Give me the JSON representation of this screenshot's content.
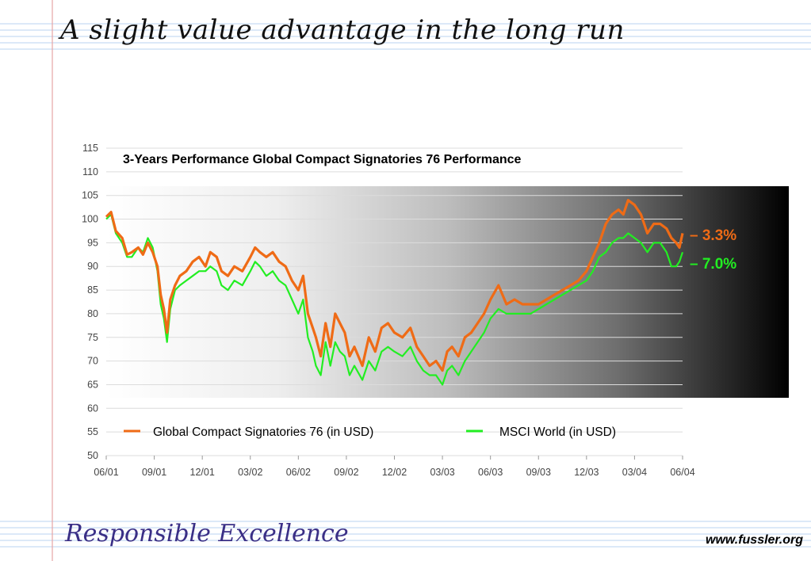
{
  "slide": {
    "title": "A slight value advantage in the long run",
    "footer_title": "Responsible Excellence",
    "footer_url": "www.fussler.org"
  },
  "colors": {
    "series_orange": "#ef6b16",
    "series_green": "#22ee22",
    "ruling_blue": "#b9d3f1",
    "margin_red": "#e6a5a5",
    "footer_title": "#3a2f86"
  },
  "chart_data": {
    "type": "line",
    "title": "3-Years Performance Global Compact Signatories 76 Performance",
    "xlabel": "",
    "ylabel": "",
    "ylim": [
      50,
      115
    ],
    "yticks": [
      50,
      55,
      60,
      65,
      70,
      75,
      80,
      85,
      90,
      95,
      100,
      105,
      110,
      115
    ],
    "xlim": [
      0,
      36
    ],
    "xtick_positions": [
      0,
      3,
      6,
      9,
      12,
      15,
      18,
      21,
      24,
      27,
      30,
      33,
      36
    ],
    "xtick_labels": [
      "06/01",
      "09/01",
      "12/01",
      "03/02",
      "06/02",
      "09/02",
      "12/02",
      "03/03",
      "06/03",
      "09/03",
      "12/03",
      "03/04",
      "06/04"
    ],
    "grid": "horizontal",
    "legend_position": "bottom",
    "series": [
      {
        "name": "Global Compact Signatories 76 (in USD)",
        "color": "#ef6b16",
        "x": [
          0,
          0.3,
          0.6,
          1,
          1.3,
          1.6,
          2,
          2.3,
          2.6,
          2.9,
          3.2,
          3.4,
          3.6,
          3.8,
          4,
          4.3,
          4.6,
          5,
          5.4,
          5.8,
          6.2,
          6.5,
          6.9,
          7.2,
          7.6,
          8,
          8.5,
          9,
          9.3,
          9.6,
          10,
          10.4,
          10.8,
          11.2,
          11.6,
          12,
          12.3,
          12.6,
          12.9,
          13.1,
          13.4,
          13.7,
          14,
          14.3,
          14.6,
          14.9,
          15.2,
          15.5,
          16,
          16.4,
          16.8,
          17.2,
          17.6,
          18,
          18.5,
          19,
          19.4,
          19.8,
          20.2,
          20.6,
          21,
          21.3,
          21.6,
          22,
          22.4,
          22.8,
          23.2,
          23.6,
          24,
          24.5,
          25,
          25.5,
          26,
          26.5,
          27,
          27.5,
          28,
          28.5,
          29,
          29.5,
          30,
          30.4,
          30.8,
          31.2,
          31.6,
          32,
          32.3,
          32.6,
          33,
          33.4,
          33.8,
          34.2,
          34.6,
          35,
          35.3,
          35.6,
          35.8,
          36
        ],
        "values": [
          100.5,
          101.5,
          97.5,
          96,
          92.5,
          93,
          94,
          92.5,
          95,
          93,
          90,
          84,
          81,
          76,
          83,
          86,
          88,
          89,
          91,
          92,
          90,
          93,
          92,
          89,
          88,
          90,
          89,
          92,
          94,
          93,
          92,
          93,
          91,
          90,
          87,
          85,
          88,
          80,
          77,
          75,
          71,
          78,
          73,
          80,
          78,
          76,
          71,
          73,
          69,
          75,
          72,
          77,
          78,
          76,
          75,
          77,
          73,
          71,
          69,
          70,
          68,
          72,
          73,
          71,
          75,
          76,
          78,
          80,
          83,
          86,
          82,
          83,
          82,
          82,
          82,
          83,
          84,
          85,
          86,
          87,
          89,
          92,
          95,
          99,
          101,
          102,
          101,
          104,
          103,
          101,
          97,
          99,
          99,
          98,
          96,
          95,
          94,
          97
        ]
      },
      {
        "name": "MSCI World (in USD)",
        "color": "#22ee22",
        "x": [
          0,
          0.3,
          0.6,
          1,
          1.3,
          1.6,
          2,
          2.3,
          2.6,
          2.9,
          3.2,
          3.4,
          3.6,
          3.8,
          4,
          4.3,
          4.6,
          5,
          5.4,
          5.8,
          6.2,
          6.5,
          6.9,
          7.2,
          7.6,
          8,
          8.5,
          9,
          9.3,
          9.6,
          10,
          10.4,
          10.8,
          11.2,
          11.6,
          12,
          12.3,
          12.6,
          12.9,
          13.1,
          13.4,
          13.7,
          14,
          14.3,
          14.6,
          14.9,
          15.2,
          15.5,
          16,
          16.4,
          16.8,
          17.2,
          17.6,
          18,
          18.5,
          19,
          19.4,
          19.8,
          20.2,
          20.6,
          21,
          21.3,
          21.6,
          22,
          22.4,
          22.8,
          23.2,
          23.6,
          24,
          24.5,
          25,
          25.5,
          26,
          26.5,
          27,
          27.5,
          28,
          28.5,
          29,
          29.5,
          30,
          30.4,
          30.8,
          31.2,
          31.6,
          32,
          32.3,
          32.6,
          33,
          33.4,
          33.8,
          34.2,
          34.6,
          35,
          35.3,
          35.6,
          35.8,
          36
        ],
        "values": [
          100,
          101,
          97,
          95,
          92,
          92,
          94,
          93,
          96,
          94,
          89,
          82,
          79,
          74,
          81,
          85,
          86,
          87,
          88,
          89,
          89,
          90,
          89,
          86,
          85,
          87,
          86,
          89,
          91,
          90,
          88,
          89,
          87,
          86,
          83,
          80,
          83,
          75,
          72,
          69,
          67,
          74,
          69,
          74,
          72,
          71,
          67,
          69,
          66,
          70,
          68,
          72,
          73,
          72,
          71,
          73,
          70,
          68,
          67,
          67,
          65,
          68,
          69,
          67,
          70,
          72,
          74,
          76,
          79,
          81,
          80,
          80,
          80,
          80,
          81,
          82,
          83,
          84,
          85,
          86,
          87,
          89,
          92,
          93,
          95,
          96,
          96,
          97,
          96,
          95,
          93,
          95,
          95,
          93,
          90,
          90,
          91,
          93
        ]
      }
    ],
    "annotations": [
      {
        "text": "– 3.3%",
        "color": "#ef6b16"
      },
      {
        "text": "– 7.0%",
        "color": "#22ee22"
      }
    ]
  }
}
